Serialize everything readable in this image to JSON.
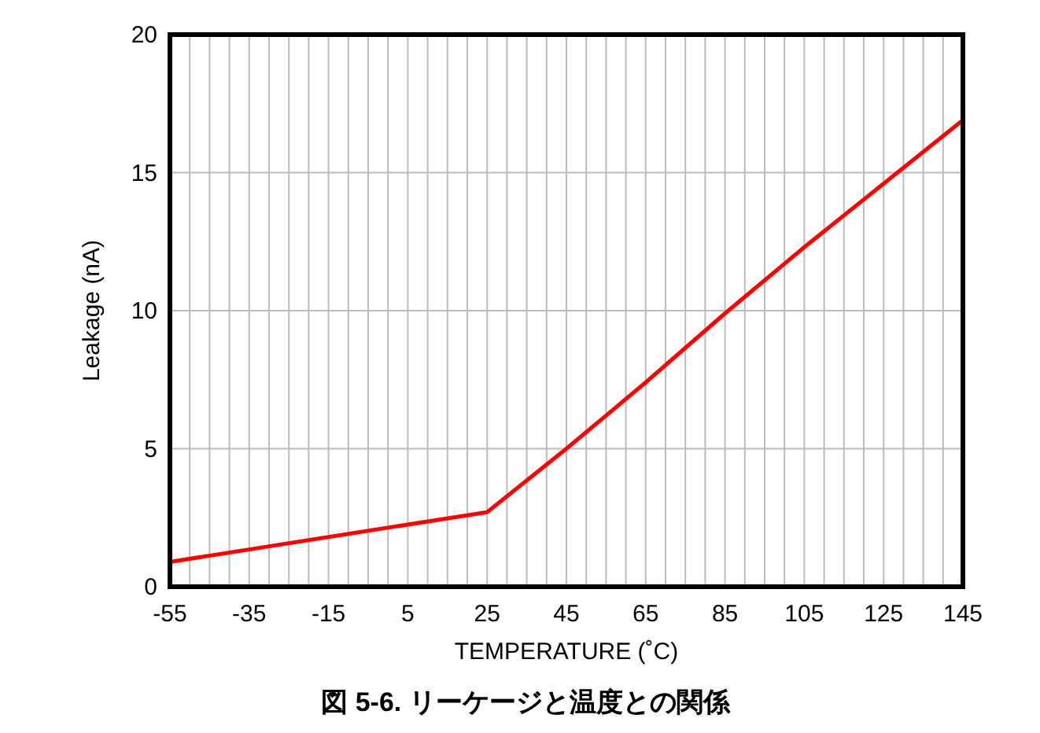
{
  "chart_data": {
    "type": "line",
    "title": "図 5-6. リーケージと温度との関係",
    "xlabel": "TEMPERATURE (˚C)",
    "ylabel": "Leakage (nA)",
    "x": [
      -55,
      25,
      45,
      65,
      85,
      105,
      125,
      145
    ],
    "series": [
      {
        "color": "#ff0000",
        "values": [
          0.9,
          2.7,
          5.0,
          7.4,
          9.9,
          12.3,
          14.6,
          16.9
        ]
      }
    ],
    "xlim": [
      -55,
      145
    ],
    "xticks": [
      -55,
      {
        "value": -50,
        "label": null
      },
      {
        "value": -45,
        "label": null
      },
      {
        "value": -40,
        "label": null
      },
      -35,
      {
        "value": -30,
        "label": null
      },
      {
        "value": -25,
        "label": null
      },
      {
        "value": -20,
        "label": null
      },
      -15,
      {
        "value": -10,
        "label": null
      },
      {
        "value": -5,
        "label": null
      },
      {
        "value": 0,
        "label": null
      },
      5,
      {
        "value": 10,
        "label": null
      },
      {
        "value": 15,
        "label": null
      },
      {
        "value": 20,
        "label": null
      },
      25,
      {
        "value": 30,
        "label": null
      },
      {
        "value": 35,
        "label": null
      },
      {
        "value": 40,
        "label": null
      },
      45,
      {
        "value": 50,
        "label": null
      },
      {
        "value": 55,
        "label": null
      },
      {
        "value": 60,
        "label": null
      },
      65,
      {
        "value": 70,
        "label": null
      },
      {
        "value": 75,
        "label": null
      },
      {
        "value": 80,
        "label": null
      },
      85,
      {
        "value": 90,
        "label": null
      },
      {
        "value": 95,
        "label": null
      },
      {
        "value": 100,
        "label": null
      },
      105,
      {
        "value": 110,
        "label": null
      },
      {
        "value": 115,
        "label": null
      },
      {
        "value": 120,
        "label": null
      },
      125,
      {
        "value": 130,
        "label": null
      },
      {
        "value": 135,
        "label": null
      },
      {
        "value": 140,
        "label": null
      },
      145
    ],
    "ylim": [
      0,
      20
    ],
    "yticks": [
      0,
      5,
      10,
      15,
      20
    ],
    "grid": true,
    "line_style": "solid",
    "marker": "none"
  }
}
